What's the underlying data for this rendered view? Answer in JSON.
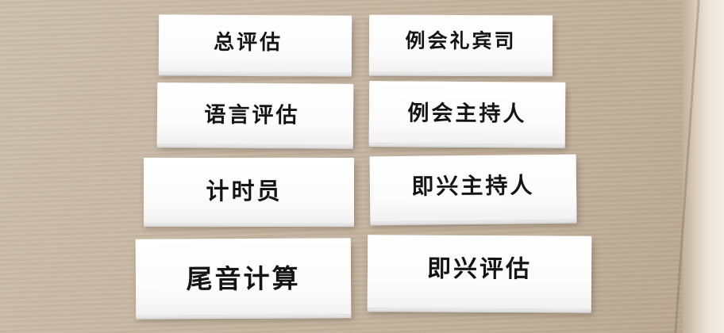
{
  "cards": [
    {
      "text": "总评估"
    },
    {
      "text": "例会礼宾司"
    },
    {
      "text": "语言评估"
    },
    {
      "text": "例会主持人"
    },
    {
      "text": "计时员"
    },
    {
      "text": "即兴主持人"
    },
    {
      "text": "尾音计算"
    },
    {
      "text": "即兴评估"
    }
  ]
}
